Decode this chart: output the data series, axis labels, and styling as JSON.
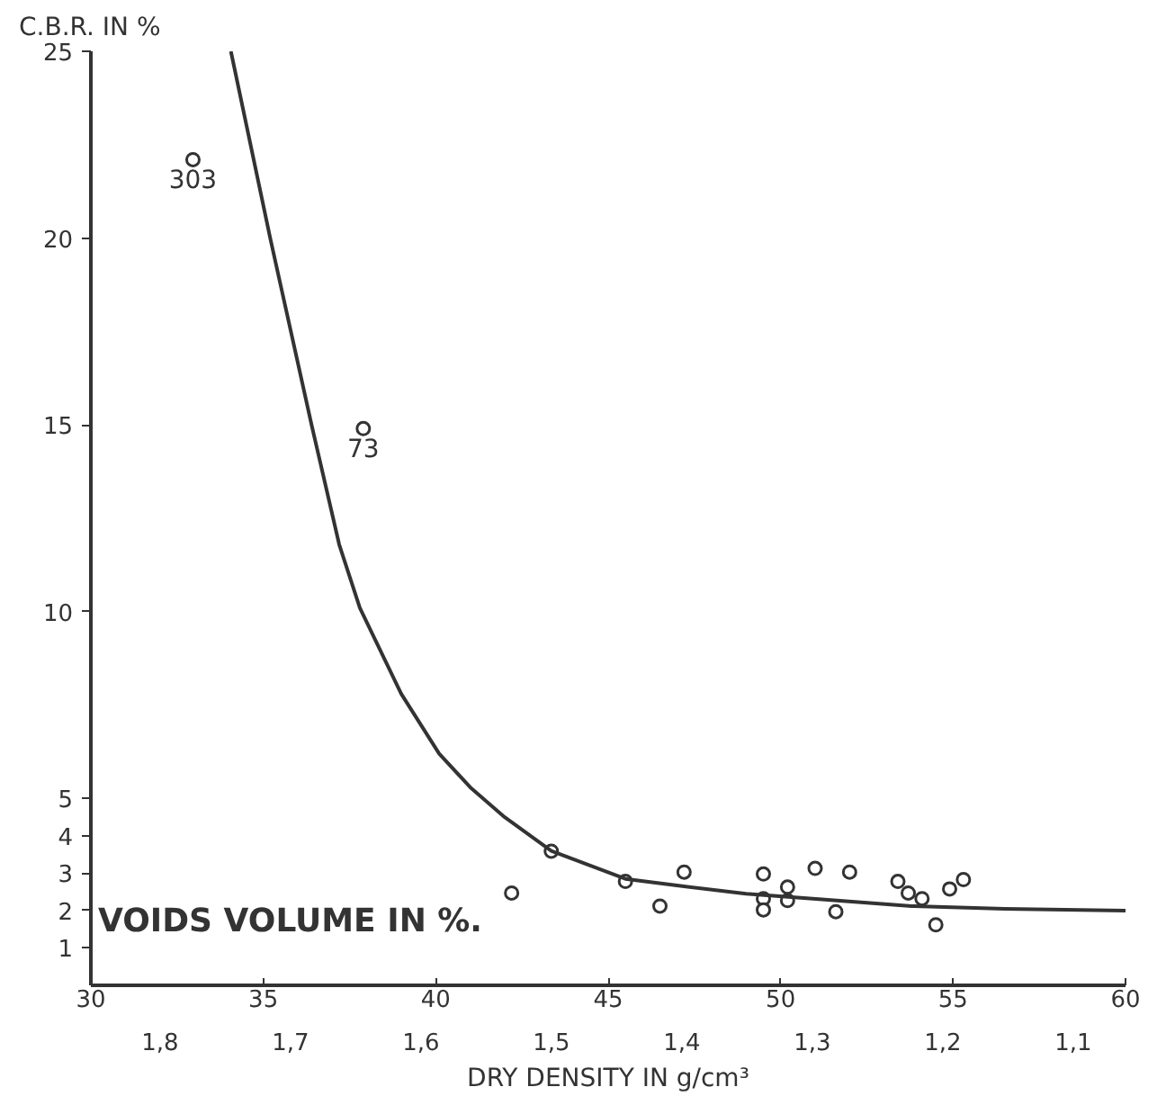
{
  "chart_data": {
    "type": "scatter",
    "ylabel": "C.B.R. IN %",
    "xlabel": "VOIDS VOLUME IN %.",
    "x2label": "DRY DENSITY IN g/cm³",
    "xlim": [
      30,
      60
    ],
    "xticks": [
      30,
      35,
      40,
      45,
      50,
      55,
      60
    ],
    "x2lim": [
      1.853,
      1.06
    ],
    "x2ticks": [
      {
        "value": 1.8,
        "label": "1,8"
      },
      {
        "value": 1.7,
        "label": "1,7"
      },
      {
        "value": 1.6,
        "label": "1,6"
      },
      {
        "value": 1.5,
        "label": "1,5"
      },
      {
        "value": 1.4,
        "label": "1,4"
      },
      {
        "value": 1.3,
        "label": "1,3"
      },
      {
        "value": 1.2,
        "label": "1,2"
      },
      {
        "value": 1.1,
        "label": "1,1"
      }
    ],
    "ylim": [
      0,
      25
    ],
    "yticks": [
      1,
      2,
      3,
      4,
      5,
      10,
      15,
      20,
      25
    ],
    "grid": false,
    "marker": "circle",
    "series": [
      {
        "color": "#333333",
        "x": [
          32.96,
          37.9,
          42.2,
          43.35,
          45.5,
          46.5,
          47.2,
          49.5,
          49.5,
          49.5,
          50.2,
          50.2,
          51.0,
          51.6,
          52.0,
          53.4,
          53.7,
          54.1,
          54.5,
          54.9,
          55.3
        ],
        "values": [
          22.1,
          14.9,
          2.47,
          3.59,
          2.78,
          2.12,
          3.03,
          2.98,
          2.32,
          2.02,
          2.63,
          2.27,
          3.13,
          1.97,
          3.03,
          2.78,
          2.47,
          2.32,
          1.62,
          2.58,
          2.83
        ]
      },
      {
        "type": "line",
        "color": "#333333",
        "marker": "none",
        "x": [
          34.06,
          35.2,
          36.4,
          37.2,
          37.8,
          39.0,
          40.1,
          41.0,
          42.0,
          43.35,
          45.5,
          47.2,
          49.0,
          51.2,
          53.8,
          56.5,
          60
        ],
        "values": [
          25,
          20,
          15,
          11.8,
          10.1,
          7.8,
          6.2,
          5.3,
          4.5,
          3.6,
          2.85,
          2.65,
          2.45,
          2.3,
          2.12,
          2.05,
          2.0
        ]
      }
    ],
    "annotations": [
      {
        "text": "303",
        "x": 32.96,
        "y": 22.1
      },
      {
        "text": "73",
        "x": 37.9,
        "y": 14.9
      }
    ]
  }
}
